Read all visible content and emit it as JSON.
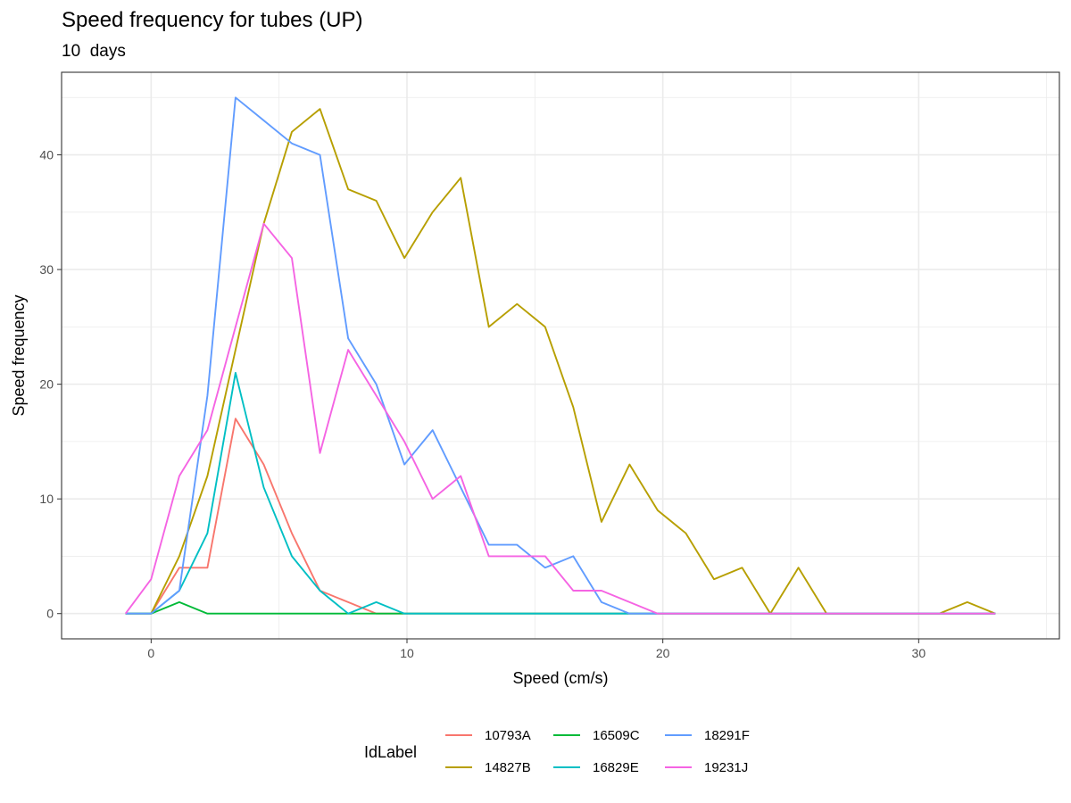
{
  "chart_data": {
    "type": "line",
    "title": "Speed frequency for tubes (UP)",
    "subtitle": "10  days",
    "xlabel": "Speed (cm/s)",
    "ylabel": "Speed frequency",
    "xlim": [
      -3.5,
      35.5
    ],
    "ylim": [
      -2.2,
      47.2
    ],
    "x_ticks": [
      0,
      10,
      20,
      30
    ],
    "y_ticks": [
      0,
      10,
      20,
      30,
      40
    ],
    "grid": true,
    "legend": {
      "title": "IdLabel",
      "position": "bottom"
    },
    "x": [
      -1,
      0,
      1.1,
      2.2,
      3.3,
      4.4,
      5.5,
      6.6,
      7.7,
      8.8,
      9.9,
      11,
      12.1,
      13.2,
      14.3,
      15.4,
      16.5,
      17.6,
      18.7,
      19.8,
      20.9,
      22,
      23.1,
      24.2,
      25.3,
      26.4,
      27.5,
      28.6,
      29.7,
      30.8,
      31.9,
      33
    ],
    "series": [
      {
        "name": "10793A",
        "color": "#F8766D",
        "values": [
          0,
          0,
          4,
          4,
          17,
          13,
          7,
          2,
          1,
          0,
          0,
          0,
          0,
          0,
          0,
          0,
          0,
          0,
          0,
          0,
          0,
          0,
          0,
          0,
          0,
          0,
          0,
          0,
          0,
          0,
          0,
          0
        ]
      },
      {
        "name": "14827B",
        "color": "#B79F00",
        "values": [
          0,
          0,
          5,
          12,
          23,
          34,
          42,
          44,
          37,
          36,
          31,
          35,
          38,
          25,
          27,
          25,
          18,
          8,
          13,
          9,
          7,
          3,
          4,
          0,
          4,
          0,
          0,
          0,
          0,
          0,
          1,
          0
        ]
      },
      {
        "name": "16509C",
        "color": "#00BA38",
        "values": [
          0,
          0,
          1,
          0,
          0,
          0,
          0,
          0,
          0,
          0,
          0,
          0,
          0,
          0,
          0,
          0,
          0,
          0,
          0,
          0,
          0,
          0,
          0,
          0,
          0,
          0,
          0,
          0,
          0,
          0,
          0,
          0
        ]
      },
      {
        "name": "16829E",
        "color": "#00BFC4",
        "values": [
          0,
          0,
          2,
          7,
          21,
          11,
          5,
          2,
          0,
          1,
          0,
          0,
          0,
          0,
          0,
          0,
          0,
          0,
          0,
          0,
          0,
          0,
          0,
          0,
          0,
          0,
          0,
          0,
          0,
          0,
          0,
          0
        ]
      },
      {
        "name": "18291F",
        "color": "#619CFF",
        "values": [
          0,
          0,
          2,
          19,
          45,
          43,
          41,
          40,
          24,
          20,
          13,
          16,
          11,
          6,
          6,
          4,
          5,
          1,
          0,
          0,
          0,
          0,
          0,
          0,
          0,
          0,
          0,
          0,
          0,
          0,
          0,
          0
        ]
      },
      {
        "name": "19231J",
        "color": "#F564E3",
        "values": [
          0,
          3,
          12,
          16,
          25,
          34,
          31,
          14,
          23,
          19,
          15,
          10,
          12,
          5,
          5,
          5,
          2,
          2,
          1,
          0,
          0,
          0,
          0,
          0,
          0,
          0,
          0,
          0,
          0,
          0,
          0,
          0
        ]
      }
    ]
  }
}
